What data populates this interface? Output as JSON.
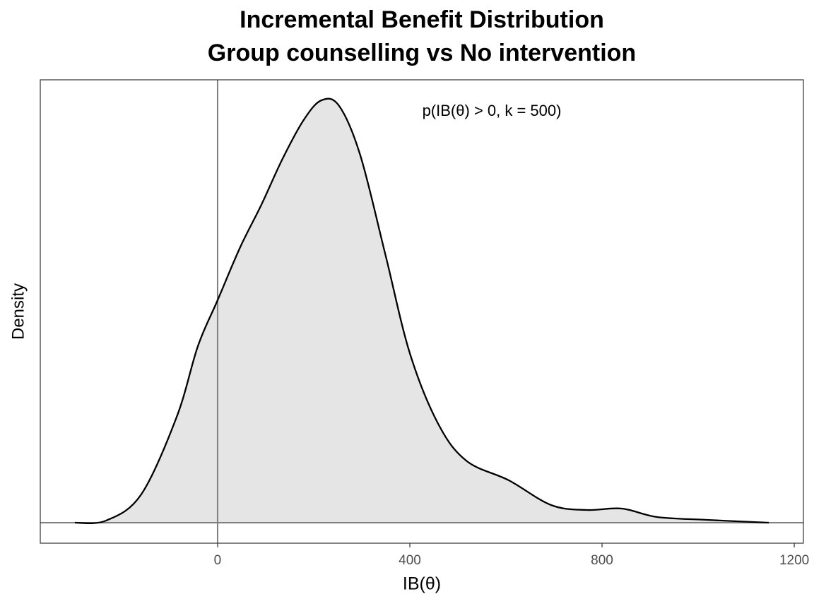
{
  "chart_data": {
    "type": "density",
    "title": "Incremental Benefit Distribution",
    "subtitle": "Group counselling vs No intervention",
    "x_label": "IB(θ)",
    "y_label": "Density",
    "annotation": "p(IB(θ) > 0, k = 500)",
    "x": [
      -297,
      -232,
      -159,
      -85,
      -41,
      0,
      47,
      91,
      135,
      179,
      216,
      253,
      297,
      349,
      400,
      459,
      518,
      606,
      694,
      768,
      841,
      915,
      1018,
      1147
    ],
    "values": [
      0,
      1.2e-05,
      0.00016,
      0.0006,
      0.001,
      0.00126,
      0.00156,
      0.0018,
      0.00206,
      0.00228,
      0.002392,
      0.00236,
      0.00208,
      0.00152,
      0.00096,
      0.00056,
      0.00035,
      0.00024,
      0.0001,
      7.2e-05,
      8e-05,
      3.2e-05,
      1.6e-05,
      0
    ],
    "color": "#000000",
    "fill": "#e5e5e5",
    "xlim": [
      -369,
      1219
    ],
    "xticks": [
      0,
      400,
      800,
      1200
    ],
    "ylim": [
      -0.000116,
      0.002508
    ],
    "vline": 0,
    "hline": 0,
    "ref_color": "#808080"
  }
}
